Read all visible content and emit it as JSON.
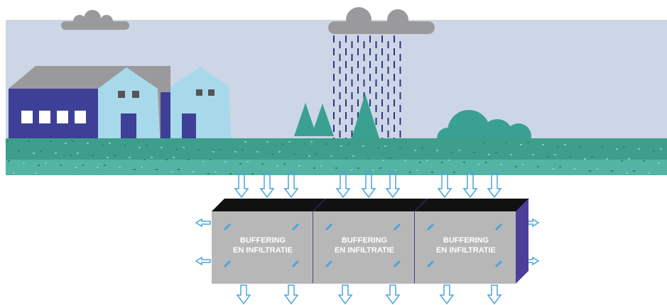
{
  "blocks": [
    {
      "line1": "BUFFERING",
      "line2": "EN INFILTRATIE"
    },
    {
      "line1": "BUFFERING",
      "line2": "EN INFILTRATIE"
    },
    {
      "line1": "BUFFERING",
      "line2": "EN INFILTRATIE"
    }
  ]
}
